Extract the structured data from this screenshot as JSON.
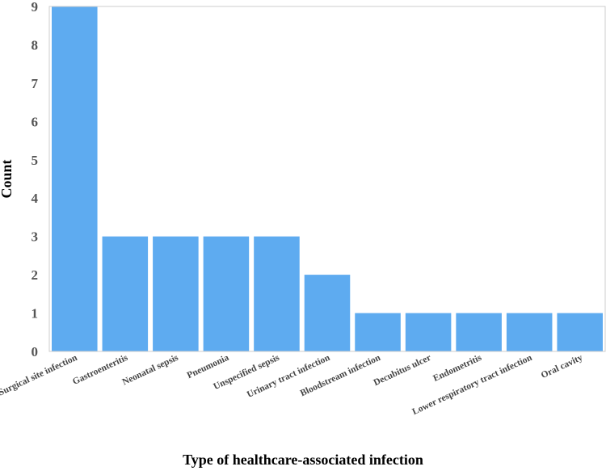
{
  "chart_data": {
    "type": "bar",
    "title": "",
    "xlabel": "Type of healthcare-associated infection",
    "ylabel": "Count",
    "ylim": [
      0,
      9
    ],
    "yticks": [
      "0",
      "1",
      "2",
      "3",
      "4",
      "5",
      "6",
      "7",
      "8",
      "9"
    ],
    "grid": false,
    "categories": [
      "Surgical site infection",
      "Gastroenteritis",
      "Neonatal sepsis",
      "Pneumonia",
      "Unspecified sepsis",
      "Urinary tract infection",
      "Bloodstream infection",
      "Decubitus ulcer",
      "Endometritis",
      "Lower respiratory tract infection",
      "Oral cavity"
    ],
    "values": [
      9,
      3,
      3,
      3,
      3,
      2,
      1,
      1,
      1,
      1,
      1
    ],
    "colors": {
      "bar": "#5eabf0",
      "frame": "#cccccc"
    }
  }
}
